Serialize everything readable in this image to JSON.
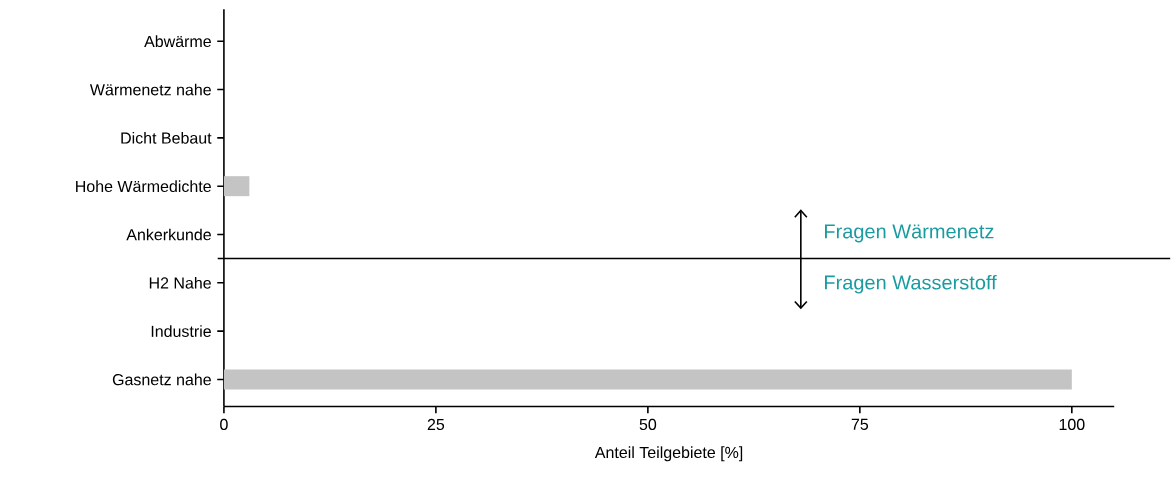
{
  "chart_data": {
    "type": "bar",
    "orientation": "horizontal",
    "xlabel": "Anteil Teilgebiete [%]",
    "categories": [
      "Abwärme",
      "Wärmenetz nahe",
      "Dicht Bebaut",
      "Hohe Wärmedichte",
      "Ankerkunde",
      "H2 Nahe",
      "Industrie",
      "Gasnetz nahe"
    ],
    "values": [
      0,
      0,
      0,
      3,
      0,
      0,
      0,
      100
    ],
    "color": "#c4c4c4",
    "xlim": [
      0,
      105
    ],
    "xticks": [
      0,
      25,
      50,
      75,
      100
    ],
    "grid": false,
    "annotations": [
      "Fragen Wärmenetz",
      "Fragen Wasserstoff"
    ]
  }
}
